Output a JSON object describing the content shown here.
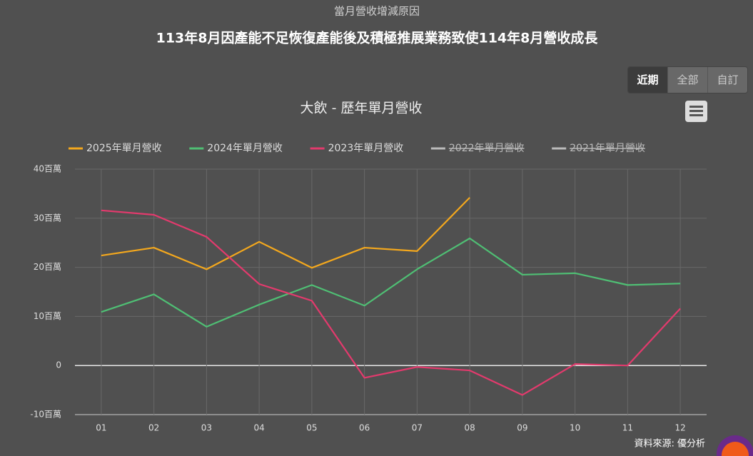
{
  "header": {
    "title": "當月營收增減原因",
    "subtitle": "113年8月因產能不足恢復產能後及積極推展業務致使114年8月營收成長"
  },
  "buttons": [
    "近期",
    "全部",
    "自訂"
  ],
  "chart_data": {
    "type": "line",
    "title": "大飲 - 歷年單月營收",
    "categories": [
      "01",
      "02",
      "03",
      "04",
      "05",
      "06",
      "07",
      "08",
      "09",
      "10",
      "11",
      "12"
    ],
    "series": [
      {
        "name": "2025年單月營收",
        "color": "#f4a81d",
        "values": [
          22.4,
          24.0,
          19.6,
          25.2,
          19.9,
          24.0,
          23.3,
          34.2,
          null,
          null,
          null,
          null
        ]
      },
      {
        "name": "2024年單月營收",
        "color": "#4fbf74",
        "values": [
          10.9,
          14.5,
          7.9,
          12.4,
          16.4,
          12.2,
          19.6,
          25.9,
          18.5,
          18.8,
          16.4,
          16.7
        ]
      },
      {
        "name": "2023年單月營收",
        "color": "#e33a6d",
        "values": [
          31.6,
          30.7,
          26.2,
          16.6,
          13.2,
          -2.5,
          -0.3,
          -1.0,
          -6.0,
          0.3,
          0.0,
          11.6
        ]
      },
      {
        "name": "2022年單月營收",
        "color": "#bbbbbb",
        "hidden": true,
        "values": [
          null,
          null,
          null,
          null,
          null,
          null,
          null,
          null,
          null,
          null,
          null,
          null
        ]
      },
      {
        "name": "2021年單月營收",
        "color": "#bbbbbb",
        "hidden": true,
        "values": [
          null,
          null,
          null,
          null,
          null,
          null,
          null,
          null,
          null,
          null,
          null,
          null
        ]
      }
    ],
    "ylim": [
      -10,
      40
    ],
    "yticks": [
      {
        "value": -10,
        "label": "-10百萬"
      },
      0,
      {
        "value": 10,
        "label": "10百萬"
      },
      {
        "value": 20,
        "label": "20百萬"
      },
      {
        "value": 30,
        "label": "30百萬"
      },
      {
        "value": 40,
        "label": "40百萬"
      }
    ],
    "grid": true,
    "legend": "top",
    "credits": "資料來源: 優分析"
  }
}
